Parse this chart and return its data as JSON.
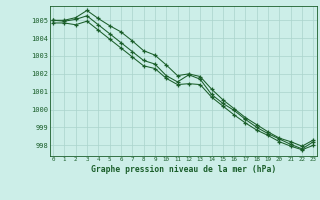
{
  "title": "Graphe pression niveau de la mer (hPa)",
  "bg_color": "#cceee8",
  "grid_color": "#aad4cc",
  "line_color": "#1a5e2a",
  "x_ticks": [
    0,
    1,
    2,
    3,
    4,
    5,
    6,
    7,
    8,
    9,
    10,
    11,
    12,
    13,
    14,
    15,
    16,
    17,
    18,
    19,
    20,
    21,
    22,
    23
  ],
  "ylim": [
    997.4,
    1005.8
  ],
  "yticks": [
    998,
    999,
    1000,
    1001,
    1002,
    1003,
    1004,
    1005
  ],
  "series": [
    [
      1005.0,
      1005.0,
      1005.15,
      1005.55,
      1005.1,
      1004.7,
      1004.35,
      1003.85,
      1003.3,
      1003.05,
      1002.5,
      1001.9,
      1002.0,
      1001.85,
      1001.15,
      1000.55,
      1000.05,
      999.55,
      999.15,
      998.75,
      998.4,
      998.2,
      997.95,
      998.3
    ],
    [
      1005.0,
      1004.95,
      1005.05,
      1005.25,
      1004.75,
      1004.25,
      1003.75,
      1003.25,
      1002.75,
      1002.55,
      1001.9,
      1001.55,
      1001.95,
      1001.7,
      1000.85,
      1000.35,
      999.95,
      999.45,
      999.0,
      998.65,
      998.35,
      998.05,
      997.8,
      998.2
    ],
    [
      1004.85,
      1004.85,
      1004.75,
      1004.95,
      1004.45,
      1003.95,
      1003.45,
      1002.95,
      1002.45,
      1002.3,
      1001.75,
      1001.4,
      1001.45,
      1001.4,
      1000.7,
      1000.2,
      999.7,
      999.25,
      998.85,
      998.55,
      998.2,
      997.95,
      997.75,
      998.0
    ]
  ]
}
